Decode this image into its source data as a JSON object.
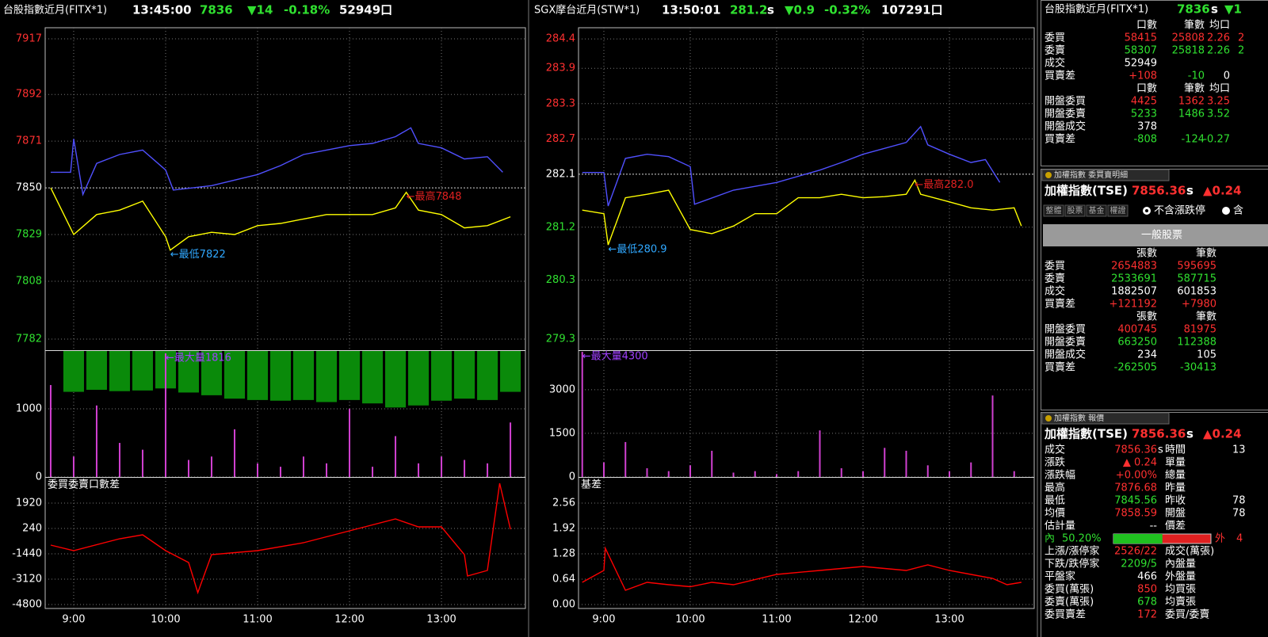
{
  "headers": [
    {
      "title": "台股指數近月(FITX*1)",
      "time": "13:45:00",
      "price": "7836",
      "change": "▼14",
      "pct": "-0.18%",
      "volume": "52949口"
    },
    {
      "title": "SGX摩台近月(STW*1)",
      "time": "13:50:01",
      "price": "281.2",
      "flag": "s",
      "change": "▼0.9",
      "pct": "-0.32%",
      "volume": "107291口"
    }
  ],
  "chart_data": [
    {
      "type": "line",
      "xlim": [
        521.4,
        834.8
      ],
      "ylim": [
        7777,
        7922
      ],
      "yticks": [
        7782,
        7808,
        7829,
        7850,
        7871,
        7892,
        7917
      ],
      "ref": 7850,
      "grid": true,
      "series": [
        {
          "color": "#ffff00",
          "x": [
            525,
            540,
            555,
            570,
            585,
            600,
            603,
            615,
            630,
            645,
            660,
            675,
            690,
            705,
            720,
            735,
            750,
            757,
            765,
            780,
            795,
            810,
            825
          ],
          "values": [
            7850,
            7829,
            7838,
            7840,
            7844,
            7828,
            7822,
            7828,
            7830,
            7829,
            7833,
            7834,
            7836,
            7838,
            7838,
            7838,
            7841,
            7848,
            7840,
            7838,
            7832,
            7833,
            7837
          ]
        },
        {
          "color": "#5050ff",
          "x": [
            525,
            538,
            540,
            546,
            555,
            570,
            585,
            600,
            605,
            630,
            660,
            675,
            690,
            705,
            720,
            735,
            750,
            760,
            765,
            780,
            795,
            810,
            820
          ],
          "values": [
            7857,
            7857,
            7872,
            7847,
            7861,
            7865,
            7867,
            7858,
            7849,
            7851,
            7856,
            7860,
            7865,
            7867,
            7869,
            7870,
            7873,
            7877,
            7870,
            7868,
            7863,
            7864,
            7857
          ]
        }
      ],
      "annotations": [
        {
          "text": "←最高7848",
          "x": 757,
          "y": 7848,
          "color": "#e02020"
        },
        {
          "text": "←最低7822",
          "x": 603,
          "y": 7822,
          "color": "#30a8ff"
        }
      ]
    },
    {
      "type": "bar",
      "xlim": [
        521.4,
        834.8
      ],
      "ylim": [
        0,
        1850
      ],
      "yticks": [
        0,
        1000
      ],
      "grid": true,
      "series": [
        {
          "color": "#d040d0",
          "x": [
            525,
            540,
            555,
            570,
            585,
            600,
            615,
            630,
            645,
            660,
            675,
            690,
            705,
            720,
            735,
            750,
            765,
            780,
            795,
            810,
            825
          ],
          "values": [
            1350,
            300,
            1050,
            500,
            400,
            1816,
            250,
            300,
            700,
            200,
            150,
            300,
            200,
            1000,
            150,
            600,
            200,
            300,
            250,
            200,
            800
          ]
        },
        {
          "color": "#0a8a0a",
          "baseline": "top",
          "x": [
            540,
            555,
            570,
            585,
            600,
            615,
            630,
            645,
            660,
            675,
            690,
            705,
            720,
            735,
            750,
            765,
            780,
            795,
            810,
            825
          ],
          "values": [
            1250,
            1280,
            1260,
            1270,
            1300,
            1240,
            1200,
            1150,
            1130,
            1120,
            1130,
            1100,
            1130,
            1080,
            1020,
            1050,
            1120,
            1150,
            1130,
            1250
          ]
        }
      ],
      "annotations": [
        {
          "text": "←最大量1816",
          "x": 600,
          "y": 1816,
          "color": "#a040ff"
        }
      ]
    },
    {
      "type": "line",
      "title": "委買委賣口數差",
      "xlim": [
        521.4,
        834.8
      ],
      "ylim": [
        -5062.5,
        3600
      ],
      "yticks": [
        -4800,
        -3120,
        -1440,
        240,
        1920
      ],
      "grid": true,
      "xticks": [
        {
          "value": 540,
          "label": "9:00"
        },
        {
          "value": 600,
          "label": "10:00"
        },
        {
          "value": 660,
          "label": "11:00"
        },
        {
          "value": 720,
          "label": "12:00"
        },
        {
          "value": 780,
          "label": "13:00"
        }
      ],
      "series": [
        {
          "color": "#ff0000",
          "x": [
            525,
            540,
            570,
            585,
            600,
            615,
            621,
            630,
            660,
            690,
            720,
            750,
            765,
            780,
            795,
            797,
            810,
            818,
            825
          ],
          "values": [
            -862,
            -1230,
            -442,
            -180,
            -1230,
            -2017,
            -4012,
            -1492,
            -1230,
            -705,
            82,
            870,
            345,
            345,
            -1492,
            -2910,
            -2542,
            3232,
            188
          ]
        }
      ]
    },
    {
      "type": "line",
      "xlim": [
        522.4,
        838.9
      ],
      "ylim": [
        279.11,
        284.59
      ],
      "yticks": [
        279.3,
        280.3,
        281.2,
        282.1,
        282.7,
        283.3,
        283.9,
        284.4
      ],
      "ref": 282.1,
      "grid": true,
      "series": [
        {
          "color": "#ffff00",
          "x": [
            525,
            540,
            543,
            555,
            570,
            585,
            600,
            615,
            630,
            645,
            660,
            675,
            690,
            705,
            720,
            735,
            750,
            756,
            760,
            780,
            795,
            810,
            825,
            830
          ],
          "values": [
            281.49,
            281.43,
            280.9,
            281.7,
            281.76,
            281.83,
            281.16,
            281.09,
            281.22,
            281.43,
            281.43,
            281.7,
            281.7,
            281.76,
            281.7,
            281.72,
            281.76,
            282.0,
            281.76,
            281.63,
            281.53,
            281.49,
            281.53,
            281.22
          ]
        },
        {
          "color": "#5050ff",
          "x": [
            525,
            540,
            543,
            555,
            570,
            585,
            600,
            603,
            630,
            660,
            690,
            705,
            720,
            750,
            760,
            765,
            780,
            795,
            805,
            815
          ],
          "values": [
            282.13,
            282.13,
            281.56,
            282.37,
            282.44,
            282.4,
            282.23,
            281.59,
            281.83,
            281.96,
            282.17,
            282.3,
            282.44,
            282.64,
            282.91,
            282.6,
            282.44,
            282.3,
            282.35,
            281.96
          ]
        }
      ],
      "annotations": [
        {
          "text": "←最高282.0",
          "x": 756,
          "y": 282.0,
          "color": "#e02020"
        },
        {
          "text": "←最低280.9",
          "x": 543,
          "y": 280.9,
          "color": "#30a8ff"
        }
      ]
    },
    {
      "type": "bar",
      "xlim": [
        522.4,
        838.9
      ],
      "ylim": [
        0,
        4330
      ],
      "yticks": [
        0,
        1500,
        3000
      ],
      "grid": true,
      "series": [
        {
          "color": "#d040d0",
          "x": [
            525,
            540,
            555,
            570,
            585,
            600,
            615,
            630,
            645,
            660,
            675,
            690,
            705,
            720,
            735,
            750,
            765,
            780,
            795,
            810,
            825
          ],
          "values": [
            4300,
            500,
            1200,
            300,
            200,
            400,
            900,
            150,
            200,
            100,
            200,
            1600,
            300,
            200,
            1000,
            900,
            400,
            200,
            500,
            2800,
            200
          ]
        }
      ],
      "annotations": [
        {
          "text": "←最大量4300",
          "x": 525,
          "y": 4300,
          "color": "#a040ff"
        }
      ]
    },
    {
      "type": "line",
      "title": "基差",
      "xlim": [
        522.4,
        838.9
      ],
      "ylim": [
        -0.1,
        3.2
      ],
      "yticks": [
        {
          "value": 0,
          "label": "0.00"
        },
        0.64,
        1.28,
        1.92,
        2.56
      ],
      "grid": true,
      "xticks": [
        {
          "value": 540,
          "label": "9:00"
        },
        {
          "value": 600,
          "label": "10:00"
        },
        {
          "value": 660,
          "label": "11:00"
        },
        {
          "value": 720,
          "label": "12:00"
        },
        {
          "value": 780,
          "label": "13:00"
        }
      ],
      "series": [
        {
          "color": "#ff0000",
          "x": [
            525,
            540,
            541,
            555,
            570,
            585,
            600,
            615,
            630,
            660,
            690,
            720,
            750,
            765,
            780,
            795,
            810,
            820,
            830
          ],
          "values": [
            0.56,
            0.86,
            1.42,
            0.36,
            0.56,
            0.5,
            0.45,
            0.56,
            0.5,
            0.76,
            0.86,
            0.96,
            0.86,
            1.0,
            0.86,
            0.76,
            0.66,
            0.5,
            0.56
          ]
        }
      ]
    }
  ],
  "fitx_quote": {
    "title": "台股指數近月(FITX*1)",
    "price": "7836",
    "flag": "s",
    "change": "▼1",
    "head": [
      "口數",
      "筆數",
      "均口"
    ],
    "rows": [
      [
        "委買",
        "58415",
        "25808",
        "2.26",
        "2"
      ],
      [
        "委賣",
        "58307",
        "25818",
        "2.26",
        "2"
      ],
      [
        "成交",
        "52949"
      ],
      [
        "買賣差",
        "+108",
        "-10",
        "0"
      ]
    ],
    "open_head": [
      "口數",
      "筆數",
      "均口"
    ],
    "open_rows": [
      [
        "開盤委買",
        "4425",
        "1362",
        "3.25"
      ],
      [
        "開盤委賣",
        "5233",
        "1486",
        "3.52"
      ],
      [
        "開盤成交",
        "378"
      ],
      [
        "買賣差",
        "-808",
        "-124",
        "-0.27"
      ]
    ]
  },
  "tse_detail": {
    "tab": "加權指數 委買賣明細",
    "name": "加權指數(TSE)",
    "price": "7856.36",
    "flag": "s",
    "change": "▲0.24",
    "buttons": [
      "整體",
      "股票",
      "基金",
      "權證"
    ],
    "radio1": "不含漲跌停",
    "radio2": "含",
    "category": "一般股票",
    "head": [
      "張數",
      "筆數"
    ],
    "rows": [
      [
        "委買",
        "2654883",
        "595695"
      ],
      [
        "委賣",
        "2533691",
        "587715"
      ],
      [
        "成交",
        "1882507",
        "601853"
      ],
      [
        "買賣差",
        "+121192",
        "+7980"
      ]
    ],
    "open_head": [
      "張數",
      "筆數"
    ],
    "open_rows": [
      [
        "開盤委買",
        "400745",
        "81975"
      ],
      [
        "開盤委賣",
        "663250",
        "112388"
      ],
      [
        "開盤成交",
        "234",
        "105"
      ],
      [
        "買賣差",
        "-262505",
        "-30413"
      ]
    ]
  },
  "tse_quote": {
    "tab": "加權指數 報價",
    "name": "加權指數(TSE)",
    "price": "7856.36",
    "flag": "s",
    "change": "▲0.24",
    "trade_flag": "s",
    "rows": [
      {
        "label": "成交",
        "value": "7856.36",
        "label2": "時間",
        "value2": "13"
      },
      {
        "label": "漲跌",
        "value": "▲ 0.24",
        "label2": "單量"
      },
      {
        "label": "漲跌幅",
        "value": "+0.00%",
        "label2": "總量"
      },
      {
        "label": "最高",
        "value": "7876.68",
        "label2": "昨量"
      },
      {
        "label": "最低",
        "value": "7845.56",
        "label2": "昨收",
        "value2": "78"
      },
      {
        "label": "均價",
        "value": "7858.59",
        "label2": "開盤",
        "value2": "78"
      },
      {
        "label": "估計量",
        "value": "--",
        "label2": "價差"
      },
      {
        "label": "上漲/漲停家",
        "value": "2526/22",
        "label2": "成交(萬張)"
      },
      {
        "label": "下跌/跌停家",
        "value": "2209/5",
        "label2": "內盤量"
      },
      {
        "label": "平盤家",
        "value": "466",
        "label2": "外盤量"
      },
      {
        "label": "委買(萬張)",
        "value": "850",
        "label2": "均買張"
      },
      {
        "label": "委賣(萬張)",
        "value": "678",
        "label2": "均賣張"
      },
      {
        "label": "委買賣差",
        "value": "172",
        "label2": "委買/委賣"
      }
    ],
    "inner": {
      "label": "內",
      "value": 50.2,
      "value_label": "50.20%",
      "lim": [
        0,
        100
      ],
      "outer_label": "外",
      "outer": "4"
    }
  }
}
